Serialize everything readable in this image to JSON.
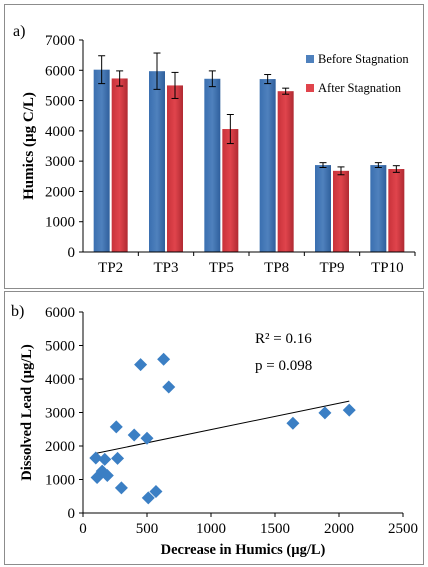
{
  "chart_data": [
    {
      "panel_label": "a)",
      "type": "bar",
      "ylabel": "Humics (µg C/L)",
      "ylim": [
        0,
        7000
      ],
      "yticks": [
        0,
        1000,
        2000,
        3000,
        4000,
        5000,
        6000,
        7000
      ],
      "categories": [
        "TP2",
        "TP3",
        "TP5",
        "TP8",
        "TP9",
        "TP10"
      ],
      "series": [
        {
          "name": "Before Stagnation",
          "color": "#4f81bd",
          "values": [
            6020,
            5970,
            5720,
            5710,
            2870,
            2870
          ],
          "errors": [
            460,
            600,
            260,
            150,
            80,
            80
          ]
        },
        {
          "name": "After Stagnation",
          "color": "#e0444c",
          "values": [
            5730,
            5500,
            4060,
            5310,
            2680,
            2740
          ],
          "errors": [
            250,
            430,
            480,
            100,
            130,
            110
          ]
        }
      ],
      "legend_position": "right"
    },
    {
      "panel_label": "b)",
      "type": "scatter",
      "xlabel": "Decrease in Humics (µg/L)",
      "ylabel": "Dissolved Lead (µg/L)",
      "xlim": [
        0,
        2500
      ],
      "ylim": [
        0,
        6000
      ],
      "xticks": [
        0,
        500,
        1000,
        1500,
        2000,
        2500
      ],
      "yticks": [
        0,
        1000,
        2000,
        3000,
        4000,
        5000,
        6000
      ],
      "marker_color": "#3b7fc4",
      "points": [
        {
          "x": 100,
          "y": 1640
        },
        {
          "x": 110,
          "y": 1060
        },
        {
          "x": 150,
          "y": 1250
        },
        {
          "x": 170,
          "y": 1600
        },
        {
          "x": 190,
          "y": 1120
        },
        {
          "x": 260,
          "y": 2570
        },
        {
          "x": 270,
          "y": 1630
        },
        {
          "x": 300,
          "y": 750
        },
        {
          "x": 400,
          "y": 2330
        },
        {
          "x": 450,
          "y": 4430
        },
        {
          "x": 500,
          "y": 2230
        },
        {
          "x": 510,
          "y": 450
        },
        {
          "x": 570,
          "y": 640
        },
        {
          "x": 630,
          "y": 4590
        },
        {
          "x": 670,
          "y": 3760
        },
        {
          "x": 1640,
          "y": 2680
        },
        {
          "x": 1890,
          "y": 2990
        },
        {
          "x": 2080,
          "y": 3070
        }
      ],
      "trendline": {
        "x": [
          100,
          2080
        ],
        "y": [
          1780,
          3340
        ]
      },
      "annotations": [
        "R² = 0.16",
        "p = 0.098"
      ]
    }
  ]
}
